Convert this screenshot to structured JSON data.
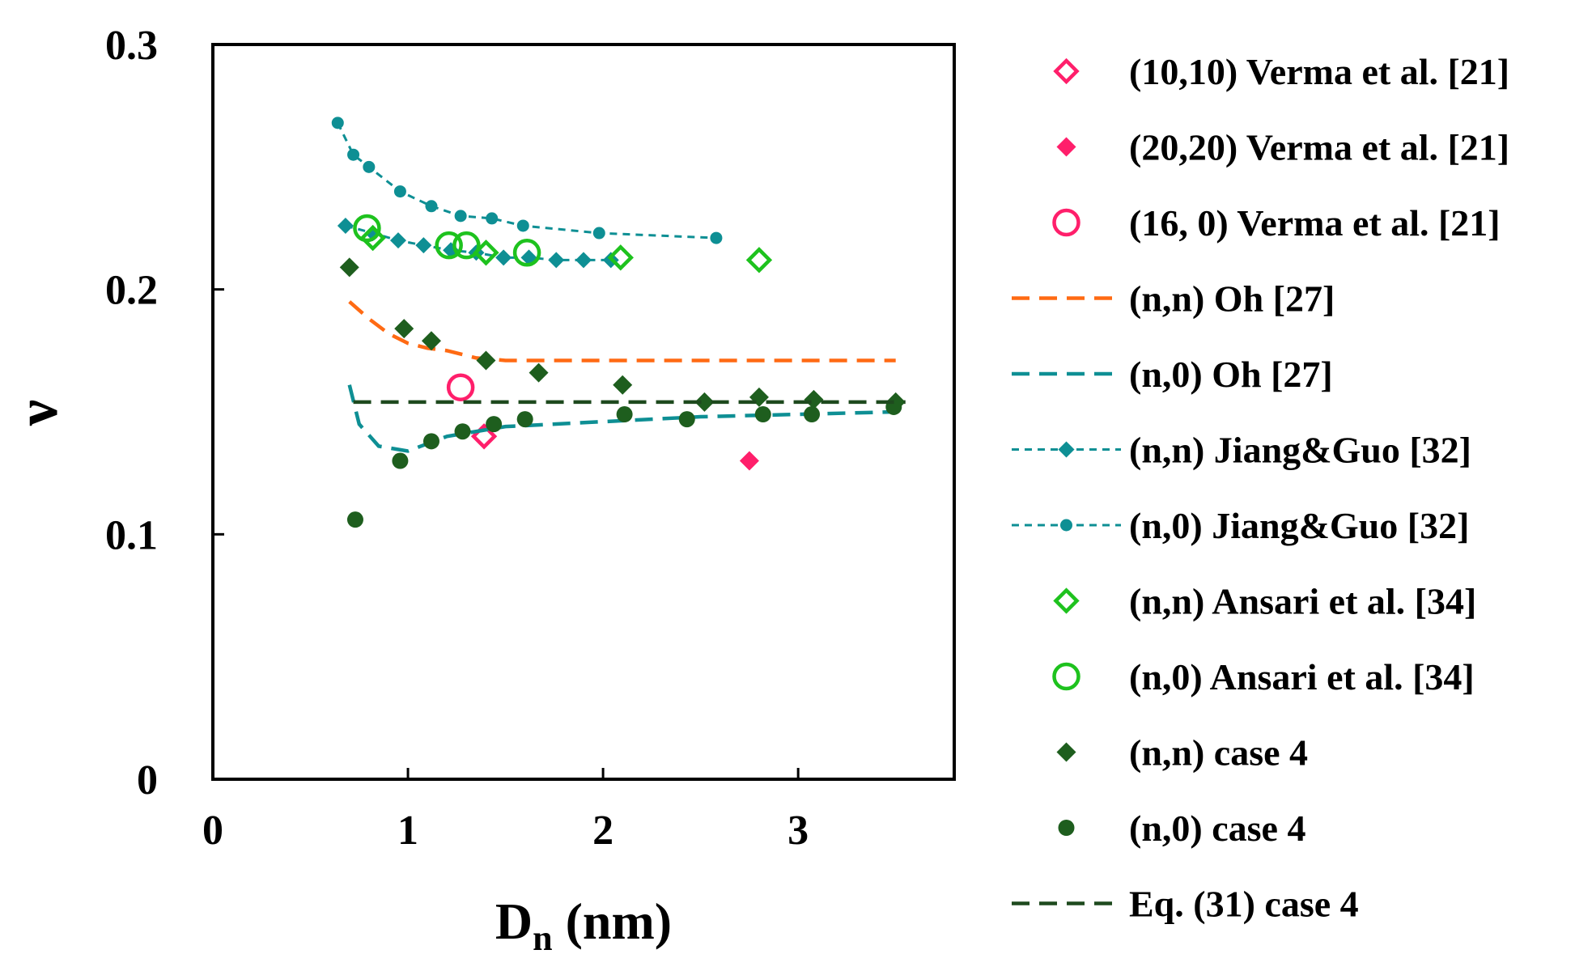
{
  "chart_data": {
    "type": "scatter",
    "xlabel": "D",
    "xlabel_sub": "n",
    "xlabel_unit": " (nm)",
    "ylabel": "ν",
    "xlim": [
      0,
      3.8
    ],
    "ylim": [
      0,
      0.3
    ],
    "xticks": [
      {
        "value": 0,
        "label": "0"
      },
      {
        "value": 1,
        "label": "1"
      },
      {
        "value": 2,
        "label": "2"
      },
      {
        "value": 3,
        "label": "3"
      }
    ],
    "yticks": [
      {
        "value": 0,
        "label": "0"
      },
      {
        "value": 0.1,
        "label": "0.1"
      },
      {
        "value": 0.2,
        "label": "0.2"
      },
      {
        "value": 0.3,
        "label": "0.3"
      }
    ],
    "grid": false,
    "legend_position": "right-outside",
    "series": [
      {
        "name": "(10,10) Verma et al. [21]",
        "style": "open-diamond",
        "color": "#ff1f6b",
        "points": [
          [
            1.39,
            0.14
          ]
        ]
      },
      {
        "name": "(20,20) Verma et al. [21]",
        "style": "filled-diamond",
        "color": "#ff1f6b",
        "points": [
          [
            2.75,
            0.13
          ]
        ]
      },
      {
        "name": "(16, 0) Verma et al. [21]",
        "style": "open-circle",
        "color": "#ff1f6b",
        "points": [
          [
            1.27,
            0.16
          ]
        ]
      },
      {
        "name": "(n,n) Oh [27]",
        "style": "dash-line",
        "color": "#ff6a13",
        "points": [
          [
            0.7,
            0.195
          ],
          [
            0.8,
            0.188
          ],
          [
            0.9,
            0.182
          ],
          [
            1.0,
            0.178
          ],
          [
            1.1,
            0.176
          ],
          [
            1.2,
            0.175
          ],
          [
            1.35,
            0.172
          ],
          [
            1.5,
            0.171
          ],
          [
            2.0,
            0.171
          ],
          [
            3.5,
            0.171
          ]
        ]
      },
      {
        "name": "(n,0) Oh [27]",
        "style": "dash-line",
        "color": "#0e8f94",
        "points": [
          [
            0.7,
            0.161
          ],
          [
            0.75,
            0.145
          ],
          [
            0.85,
            0.136
          ],
          [
            1.0,
            0.134
          ],
          [
            1.2,
            0.14
          ],
          [
            1.5,
            0.144
          ],
          [
            2.0,
            0.146
          ],
          [
            2.5,
            0.148
          ],
          [
            3.0,
            0.149
          ],
          [
            3.5,
            0.15
          ]
        ]
      },
      {
        "name": "(n,n) Jiang&Guo [32]",
        "style": "dash-diamond",
        "color": "#0e8f94",
        "points": [
          [
            0.68,
            0.226
          ],
          [
            0.82,
            0.223
          ],
          [
            0.95,
            0.22
          ],
          [
            1.08,
            0.218
          ],
          [
            1.22,
            0.216
          ],
          [
            1.35,
            0.215
          ],
          [
            1.49,
            0.213
          ],
          [
            1.62,
            0.213
          ],
          [
            1.76,
            0.212
          ],
          [
            1.9,
            0.212
          ],
          [
            2.04,
            0.212
          ]
        ]
      },
      {
        "name": "(n,0) Jiang&Guo [32]",
        "style": "dash-dot",
        "color": "#0e8f94",
        "points": [
          [
            0.64,
            0.268
          ],
          [
            0.72,
            0.255
          ],
          [
            0.8,
            0.25
          ],
          [
            0.96,
            0.24
          ],
          [
            1.12,
            0.234
          ],
          [
            1.27,
            0.23
          ],
          [
            1.43,
            0.229
          ],
          [
            1.59,
            0.226
          ],
          [
            1.98,
            0.223
          ],
          [
            2.58,
            0.221
          ]
        ]
      },
      {
        "name": "(n,n) Ansari et al. [34]",
        "style": "open-diamond",
        "color": "#1ec21e",
        "points": [
          [
            0.82,
            0.221
          ],
          [
            1.4,
            0.215
          ],
          [
            2.09,
            0.213
          ],
          [
            2.8,
            0.212
          ]
        ]
      },
      {
        "name": "(n,0) Ansari et al. [34]",
        "style": "open-circle",
        "color": "#1ec21e",
        "points": [
          [
            0.79,
            0.225
          ],
          [
            1.21,
            0.218
          ],
          [
            1.3,
            0.218
          ],
          [
            1.61,
            0.215
          ]
        ]
      },
      {
        "name": "(n,n) case 4",
        "style": "filled-diamond",
        "color": "#1e5e1e",
        "points": [
          [
            0.7,
            0.209
          ],
          [
            0.98,
            0.184
          ],
          [
            1.12,
            0.179
          ],
          [
            1.4,
            0.171
          ],
          [
            1.67,
            0.166
          ],
          [
            2.1,
            0.161
          ],
          [
            2.52,
            0.154
          ],
          [
            2.8,
            0.156
          ],
          [
            3.08,
            0.155
          ],
          [
            3.5,
            0.154
          ]
        ]
      },
      {
        "name": "(n,0) case 4",
        "style": "filled-circle",
        "color": "#1e5e1e",
        "points": [
          [
            0.73,
            0.106
          ],
          [
            0.96,
            0.13
          ],
          [
            1.12,
            0.138
          ],
          [
            1.28,
            0.142
          ],
          [
            1.44,
            0.145
          ],
          [
            1.6,
            0.147
          ],
          [
            2.11,
            0.149
          ],
          [
            2.43,
            0.147
          ],
          [
            2.82,
            0.149
          ],
          [
            3.07,
            0.149
          ],
          [
            3.49,
            0.152
          ]
        ]
      },
      {
        "name": "Eq. (31) case 4",
        "style": "dash-line",
        "color": "#1e4a1e",
        "points": [
          [
            0.72,
            0.154
          ],
          [
            3.55,
            0.154
          ]
        ]
      }
    ]
  }
}
